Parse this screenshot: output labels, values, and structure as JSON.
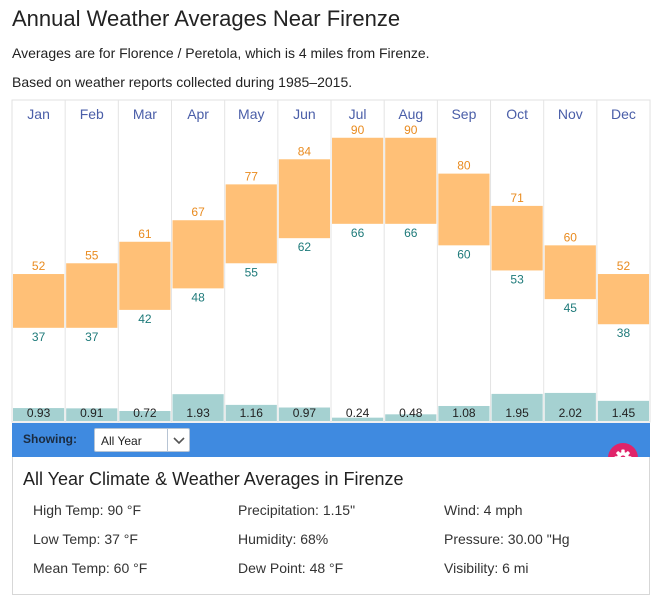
{
  "header": {
    "title": "Annual Weather Averages Near Firenze",
    "subtitle_1": "Averages are for Florence / Peretola, which is 4 miles from Firenze.",
    "subtitle_2": "Based on weather reports collected during 1985–2015."
  },
  "chart_data": {
    "type": "bar",
    "categories": [
      "Jan",
      "Feb",
      "Mar",
      "Apr",
      "May",
      "Jun",
      "Jul",
      "Aug",
      "Sep",
      "Oct",
      "Nov",
      "Dec"
    ],
    "series": [
      {
        "values": [
          52,
          55,
          61,
          67,
          77,
          84,
          90,
          90,
          80,
          71,
          60,
          52
        ]
      },
      {
        "values": [
          37,
          37,
          42,
          48,
          55,
          62,
          66,
          66,
          60,
          53,
          45,
          38
        ]
      },
      {
        "values": [
          0.93,
          0.91,
          0.72,
          1.93,
          1.16,
          0.97,
          0.24,
          0.48,
          1.08,
          1.95,
          2.02,
          1.45
        ]
      }
    ],
    "colors": {
      "temp_bar": "#ffc077",
      "precip_bar": "#a5d1d1",
      "high_label": "#e98b1f",
      "low_label": "#1e7a7a",
      "month_label": "#4a5ea8"
    }
  },
  "controls": {
    "showing_label": "Showing:",
    "period_select_value": "All Year",
    "gear_icon": "gear-icon"
  },
  "summary": {
    "title": "All Year Climate & Weather Averages in Firenze",
    "high_temp": "High Temp: 90 °F",
    "low_temp": "Low Temp: 37 °F",
    "mean_temp": "Mean Temp: 60 °F",
    "precipitation": "Precipitation: 1.15\"",
    "humidity": "Humidity: 68%",
    "dew_point": "Dew Point: 48 °F",
    "wind": "Wind: 4 mph",
    "pressure": "Pressure: 30.00 \"Hg",
    "visibility": "Visibility: 6 mi"
  }
}
